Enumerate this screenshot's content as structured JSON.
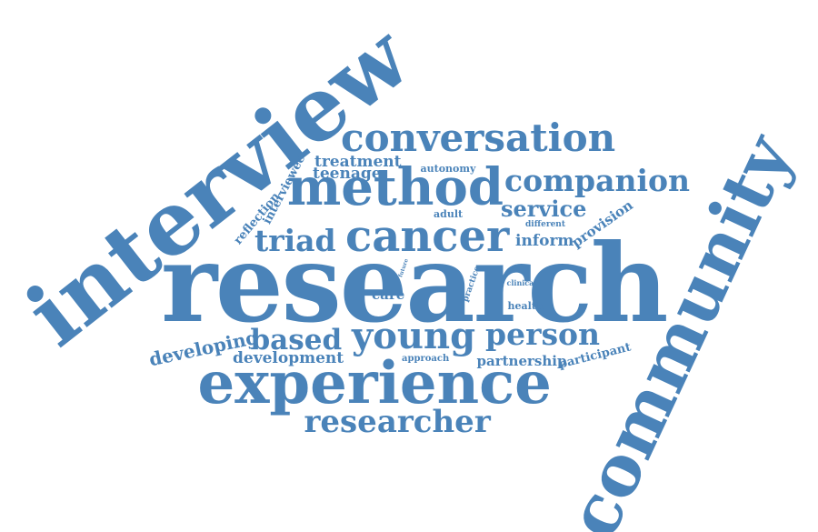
{
  "word_cloud": {
    "color": "#4a83b9",
    "words": [
      "interview",
      "research",
      "community",
      "experience",
      "method",
      "cancer",
      "conversation",
      "young",
      "person",
      "companion",
      "researcher",
      "triad",
      "based",
      "service",
      "development",
      "developing",
      "treatment",
      "teenage",
      "autonomy",
      "provision",
      "inform",
      "reflection",
      "interviewee",
      "adult",
      "different",
      "care",
      "health",
      "clinical",
      "practice",
      "future",
      "partnership",
      "participant",
      "approach"
    ]
  }
}
